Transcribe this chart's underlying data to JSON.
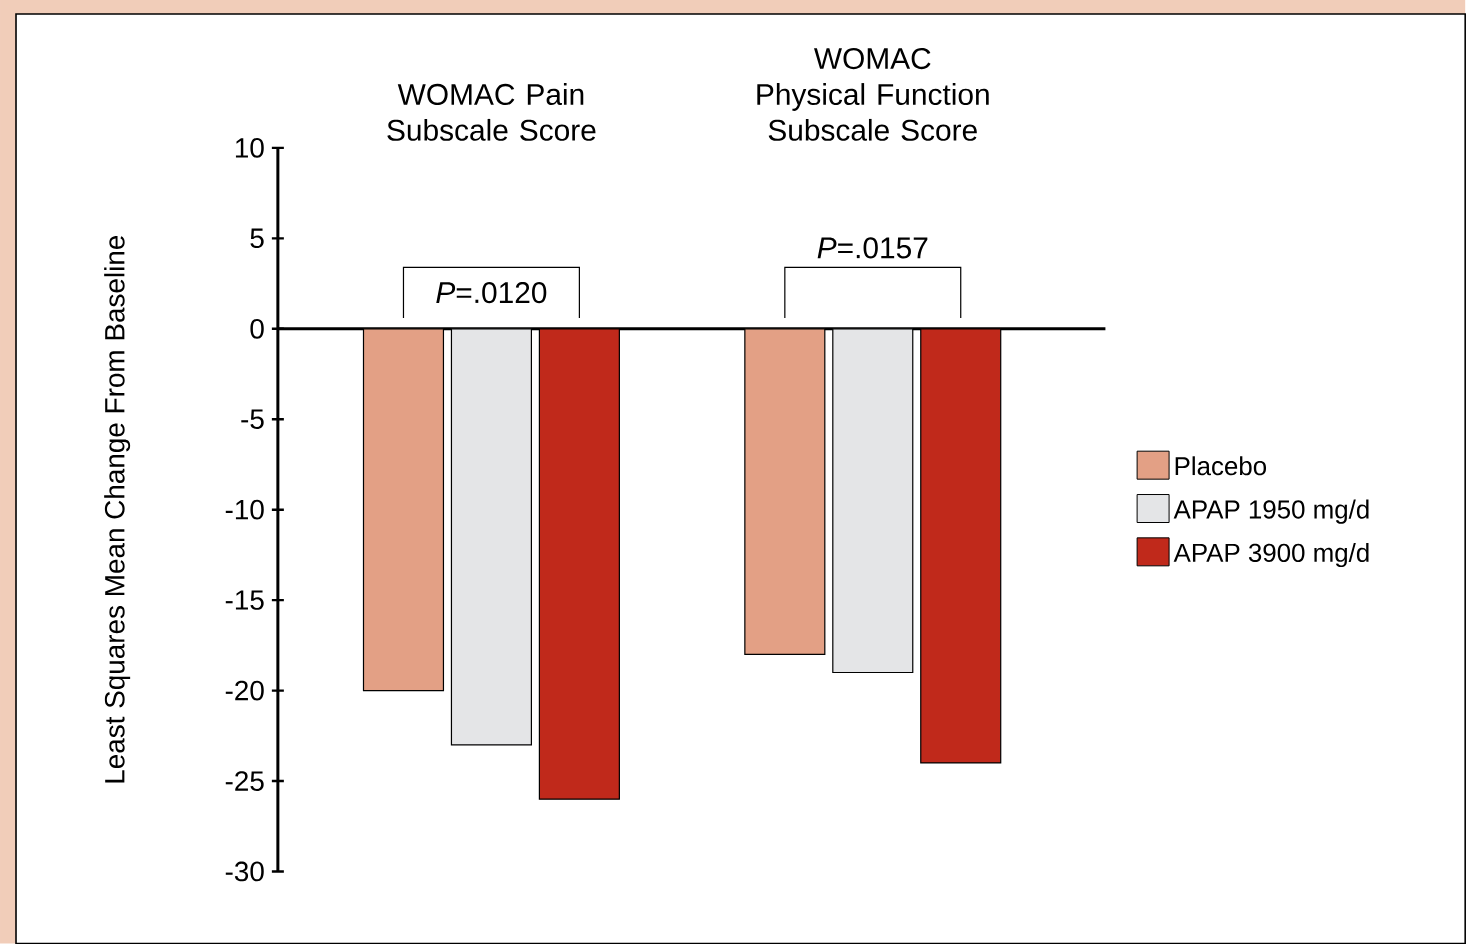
{
  "chart_data": {
    "type": "bar",
    "categories": [
      "WOMAC Pain Subscale Score",
      "WOMAC Physical Function Subscale Score"
    ],
    "ylabel": "Least Squares Mean Change From Baseline",
    "series": [
      {
        "name": "Placebo",
        "color": "#e3a085",
        "values": [
          -20,
          -18
        ]
      },
      {
        "name": "APAP 1950 mg/d",
        "color": "#e4e5e7",
        "values": [
          -23,
          -19
        ]
      },
      {
        "name": "APAP 3900 mg/d",
        "color": "#c0291b",
        "values": [
          -26,
          -24
        ]
      }
    ],
    "ylim": [
      -30,
      10
    ],
    "yticks": [
      -30,
      -25,
      -20,
      -15,
      -10,
      -5,
      0,
      5,
      10
    ],
    "annotations": [
      "*P*=.0120",
      "*P*=.0157"
    ],
    "legend": "right"
  }
}
